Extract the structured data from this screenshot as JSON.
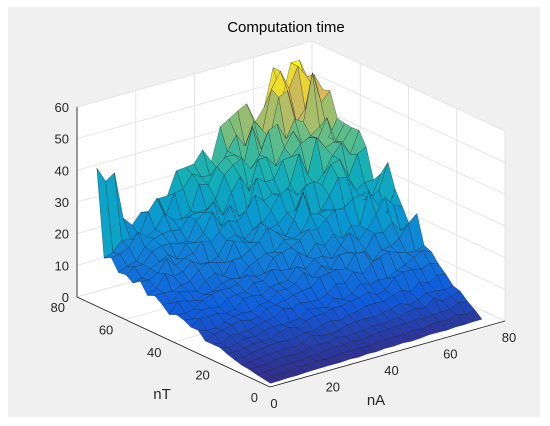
{
  "chart_data": {
    "type": "surface",
    "title": "Computation time",
    "xlabel": "nA",
    "ylabel": "nT",
    "zlabel": "",
    "xlim": [
      0,
      80
    ],
    "ylim": [
      0,
      80
    ],
    "zlim": [
      0,
      60
    ],
    "x_ticks": [
      "0",
      "20",
      "40",
      "60",
      "80"
    ],
    "y_ticks": [
      "0",
      "20",
      "40",
      "60",
      "80"
    ],
    "z_ticks": [
      "0",
      "10",
      "20",
      "30",
      "40",
      "50",
      "60"
    ],
    "grid": true,
    "colormap": "parula",
    "grid_step": 3,
    "x_range": [
      1,
      73
    ],
    "y_range": [
      1,
      73
    ],
    "description_of_trend": "time grows roughly with nA*nT, peaking about 57 near nA~50-60, nT~70; noisy spikes",
    "series": [
      {
        "x": [
          1,
          13,
          25,
          37,
          49,
          61,
          73
        ],
        "y": [
          1,
          13,
          25,
          37,
          49,
          61,
          73
        ],
        "z": [
          [
            0.5,
            0.8,
            1.0,
            1.2,
            1.5,
            1.7,
            2.0
          ],
          [
            2.0,
            3.0,
            4.0,
            5.0,
            6.0,
            7.5,
            9.0
          ],
          [
            4.0,
            6.0,
            8.0,
            10.0,
            13.0,
            16.0,
            18.0
          ],
          [
            7.0,
            9.5,
            12.0,
            16.0,
            20.0,
            24.0,
            27.0
          ],
          [
            10.0,
            13.0,
            17.0,
            22.0,
            28.0,
            33.0,
            36.0
          ],
          [
            14.0,
            18.0,
            22.0,
            29.0,
            36.0,
            44.0,
            45.0
          ],
          [
            19.0,
            24.0,
            28.0,
            36.0,
            45.0,
            55.0,
            56.0
          ]
        ]
      }
    ]
  }
}
